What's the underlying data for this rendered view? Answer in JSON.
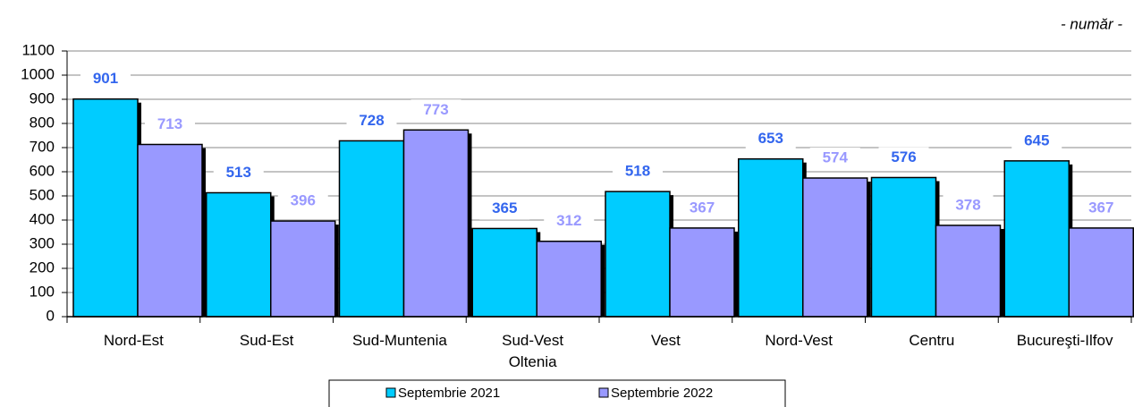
{
  "chart_data": {
    "type": "bar",
    "subtitle": "- număr -",
    "categories": [
      "Nord-Est",
      "Sud-Est",
      "Sud-Muntenia",
      "Sud-Vest Oltenia",
      "Vest",
      "Nord-Vest",
      "Centru",
      "Bucureşti-Ilfov"
    ],
    "series": [
      {
        "name": "Septembrie 2021",
        "color": "#00ccff",
        "label_color": "#3366ee",
        "values": [
          901,
          513,
          728,
          365,
          518,
          653,
          576,
          645
        ]
      },
      {
        "name": "Septembrie 2022",
        "color": "#9999ff",
        "label_color": "#9999ff",
        "values": [
          713,
          396,
          773,
          312,
          367,
          574,
          378,
          367
        ]
      }
    ],
    "ylim": [
      0,
      1100
    ],
    "yticks": [
      0,
      100,
      200,
      300,
      400,
      500,
      600,
      700,
      800,
      900,
      1000,
      1100
    ],
    "grid": true,
    "legend": "bottom"
  }
}
